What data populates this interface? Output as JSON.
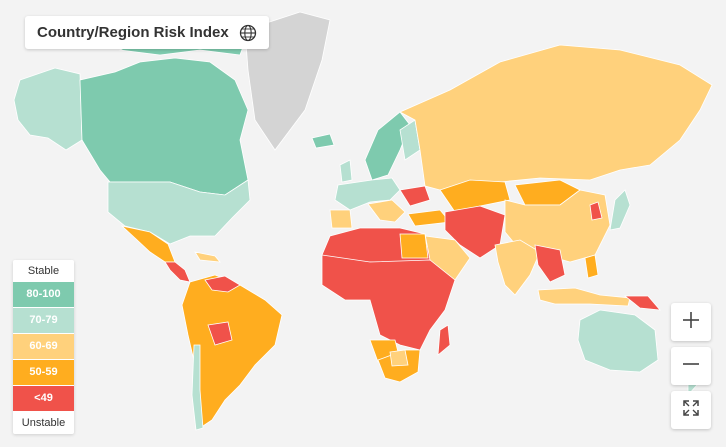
{
  "title": {
    "text": "Country/Region Risk Index",
    "icon": "globe-icon"
  },
  "legend": {
    "top_label": "Stable",
    "bottom_label": "Unstable",
    "items": [
      {
        "label": "80-100",
        "color": "#7ecaae"
      },
      {
        "label": "70-79",
        "color": "#b6e0d1"
      },
      {
        "label": "60-69",
        "color": "#ffd17c"
      },
      {
        "label": "50-59",
        "color": "#ffad1f"
      },
      {
        "label": "<49",
        "color": "#f0524a"
      }
    ]
  },
  "colors": {
    "ocean": "#f3f3f3",
    "no_data": "#d4d4d4",
    "border": "#ffffff"
  },
  "controls": [
    {
      "name": "zoom-in-button",
      "icon": "plus-icon"
    },
    {
      "name": "zoom-out-button",
      "icon": "minus-icon"
    },
    {
      "name": "fullscreen-button",
      "icon": "expand-icon"
    }
  ]
}
